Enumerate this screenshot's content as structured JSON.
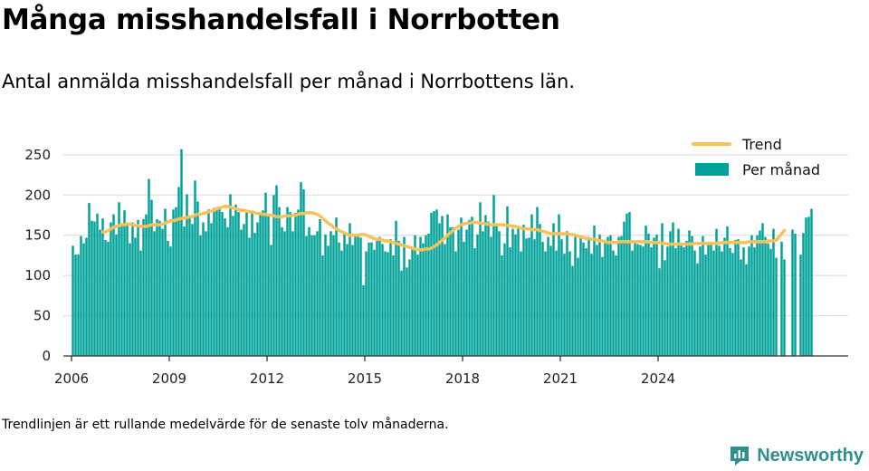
{
  "title": "Många misshandelsfall i Norrbotten",
  "subtitle": "Antal anmälda misshandelsfall per månad i Norrbottens län.",
  "footnote": "Trendlinjen är ett rullande medelvärde för de senaste tolv månaderna.",
  "brand": {
    "name": "Newsworthy"
  },
  "colors": {
    "bars": "#00a199",
    "trend": "#f7c15c",
    "grid": "#dedede",
    "axis": "#333333",
    "brand": "#2f8f8c"
  },
  "chart_data": {
    "type": "bar",
    "start": "2006-01",
    "ylim": [
      0,
      260
    ],
    "yticks": [
      0,
      50,
      100,
      150,
      200,
      250
    ],
    "xticks": [
      "2006",
      "2009",
      "2012",
      "2015",
      "2018",
      "2021",
      "2024"
    ],
    "grid": true,
    "legend_position": "top-right",
    "series": [
      {
        "name": "Per månad",
        "type": "bar",
        "values": [
          137,
          126,
          126,
          149,
          140,
          147,
          190,
          168,
          167,
          177,
          157,
          171,
          144,
          142,
          166,
          176,
          151,
          191,
          165,
          181,
          165,
          140,
          166,
          147,
          169,
          131,
          170,
          176,
          220,
          194,
          155,
          170,
          168,
          158,
          183,
          143,
          136,
          182,
          185,
          210,
          257,
          161,
          201,
          172,
          164,
          218,
          192,
          150,
          166,
          155,
          182,
          165,
          184,
          183,
          185,
          179,
          171,
          160,
          201,
          174,
          188,
          179,
          157,
          164,
          180,
          147,
          179,
          153,
          166,
          175,
          181,
          203,
          175,
          138,
          200,
          212,
          185,
          160,
          155,
          185,
          179,
          155,
          178,
          182,
          216,
          207,
          149,
          160,
          150,
          150,
          155,
          170,
          125,
          151,
          137,
          155,
          150,
          172,
          141,
          131,
          154,
          139,
          165,
          138,
          150,
          152,
          147,
          88,
          130,
          141,
          141,
          132,
          143,
          148,
          139,
          130,
          129,
          145,
          125,
          168,
          143,
          106,
          148,
          110,
          120,
          134,
          150,
          126,
          148,
          140,
          150,
          152,
          178,
          180,
          182,
          165,
          174,
          139,
          176,
          160,
          160,
          130,
          157,
          172,
          142,
          157,
          169,
          173,
          134,
          151,
          191,
          155,
          175,
          167,
          148,
          200,
          165,
          155,
          125,
          140,
          186,
          135,
          158,
          151,
          162,
          130,
          163,
          146,
          147,
          176,
          145,
          185,
          164,
          142,
          130,
          148,
          137,
          165,
          131,
          176,
          145,
          127,
          155,
          130,
          112,
          148,
          122,
          147,
          141,
          134,
          148,
          127,
          162,
          138,
          151,
          123,
          141,
          148,
          150,
          131,
          125,
          148,
          149,
          167,
          177,
          179,
          131,
          141,
          139,
          138,
          136,
          162,
          152,
          135,
          147,
          151,
          109,
          165,
          119,
          136,
          155,
          166,
          134,
          158,
          137,
          135,
          143,
          156,
          149,
          131,
          115,
          136,
          149,
          126,
          138,
          141,
          131,
          158,
          137,
          130,
          147,
          161,
          134,
          128,
          144,
          145,
          120,
          135,
          114,
          136,
          150,
          135,
          150,
          156,
          165,
          148,
          140,
          133,
          158,
          122,
          0,
          142,
          120,
          0,
          0,
          157,
          152,
          0,
          126,
          153,
          172,
          173,
          183
        ]
      },
      {
        "name": "Trend",
        "type": "line",
        "values": [
          null,
          null,
          null,
          null,
          null,
          null,
          null,
          null,
          null,
          null,
          null,
          154,
          154,
          156,
          158,
          160,
          161,
          162,
          163,
          163,
          164,
          164,
          163,
          162,
          162,
          161,
          161,
          161,
          162,
          163,
          163,
          163,
          163,
          164,
          165,
          167,
          168,
          168,
          169,
          170,
          171,
          171,
          172,
          173,
          173,
          175,
          176,
          176,
          177,
          178,
          179,
          180,
          181,
          183,
          184,
          185,
          186,
          186,
          185,
          184,
          183,
          182,
          181,
          181,
          180,
          179,
          179,
          178,
          177,
          177,
          176,
          176,
          175,
          175,
          174,
          173,
          173,
          173,
          174,
          174,
          174,
          175,
          175,
          176,
          177,
          177,
          178,
          178,
          178,
          177,
          176,
          174,
          171,
          168,
          165,
          163,
          160,
          158,
          156,
          154,
          153,
          151,
          150,
          150,
          150,
          150,
          151,
          151,
          150,
          149,
          147,
          146,
          145,
          145,
          144,
          143,
          143,
          142,
          141,
          140,
          139,
          138,
          137,
          136,
          135,
          134,
          133,
          132,
          132,
          132,
          133,
          133,
          134,
          136,
          138,
          141,
          144,
          147,
          150,
          153,
          156,
          159,
          161,
          163,
          164,
          165,
          165,
          166,
          166,
          166,
          165,
          165,
          164,
          164,
          163,
          163,
          163,
          163,
          163,
          163,
          162,
          162,
          161,
          161,
          160,
          159,
          158,
          158,
          158,
          157,
          157,
          157,
          156,
          155,
          154,
          153,
          152,
          152,
          152,
          152,
          152,
          152,
          152,
          151,
          151,
          150,
          149,
          148,
          147,
          146,
          146,
          145,
          145,
          144,
          143,
          143,
          142,
          141,
          141,
          141,
          141,
          142,
          142,
          142,
          142,
          142,
          142,
          142,
          142,
          142,
          142,
          142,
          142,
          141,
          141,
          141,
          141,
          140,
          140,
          139,
          139,
          139,
          139,
          139,
          139,
          139,
          139,
          139,
          139,
          140,
          140,
          140,
          140,
          140,
          140,
          140,
          140,
          140,
          140,
          141,
          141,
          141,
          141,
          141,
          141,
          141,
          141,
          141,
          141,
          142,
          142,
          142,
          142,
          142,
          142,
          142,
          143,
          143,
          143,
          144,
          148,
          152,
          156
        ]
      }
    ]
  }
}
